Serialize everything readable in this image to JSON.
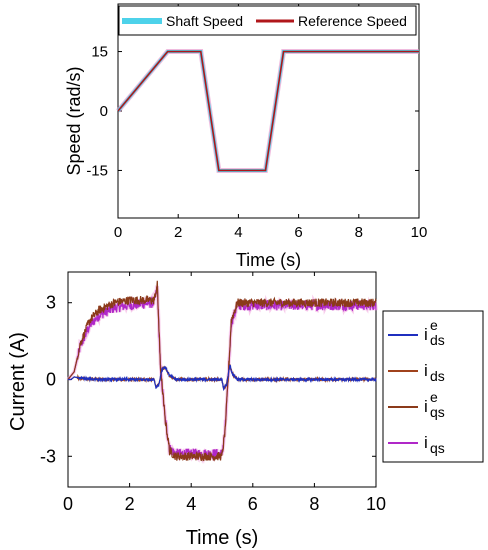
{
  "chart_data": [
    {
      "type": "line",
      "xlabel": "Time (s)",
      "ylabel": "Speed (rad/s)",
      "xlim": [
        0,
        10
      ],
      "ylim": [
        -27,
        27
      ],
      "xticks": [
        "0",
        "2",
        "4",
        "6",
        "8",
        "10"
      ],
      "yticks": [
        "15",
        "0",
        "-15"
      ],
      "ytick_values": [
        15,
        0,
        -15
      ],
      "grid": false,
      "legend_position": "top",
      "colors": {
        "shaft": "#4dd2ea",
        "reference": "#b0161a"
      },
      "series": [
        {
          "name": "Shaft Speed",
          "x": [
            0,
            1.65,
            2.75,
            3.35,
            4.9,
            5.5,
            10
          ],
          "y": [
            0,
            15,
            15,
            -15,
            -15,
            15,
            15
          ]
        },
        {
          "name": "Reference Speed",
          "x": [
            0,
            1.65,
            2.75,
            3.35,
            4.9,
            5.5,
            10
          ],
          "y": [
            0,
            15,
            15,
            -15,
            -15,
            15,
            15
          ]
        }
      ]
    },
    {
      "type": "line",
      "xlabel": "Time (s)",
      "ylabel": "Current (A)",
      "xlim": [
        0,
        10
      ],
      "ylim": [
        -4.2,
        4.2
      ],
      "xticks": [
        "0",
        "2",
        "4",
        "6",
        "8",
        "10"
      ],
      "yticks": [
        "3",
        "0",
        "-3"
      ],
      "ytick_values": [
        3,
        0,
        -3
      ],
      "grid": false,
      "legend_position": "right",
      "colors": {
        "ids_e": "#1f2fbf",
        "ids": "#a0421c",
        "iqs_e": "#8b3a1a",
        "iqs": "#b028c8"
      },
      "series": [
        {
          "name_base": "i",
          "name_sub": "ds",
          "name_sup": "e",
          "x": [
            0,
            0.1,
            0.2,
            0.4,
            1.0,
            2.8,
            2.85,
            2.95,
            3.05,
            3.15,
            3.3,
            3.5,
            5.0,
            5.05,
            5.15,
            5.25,
            5.35,
            5.5,
            10
          ],
          "y": [
            0,
            0,
            0.1,
            0.05,
            0.0,
            0.0,
            -0.3,
            -0.2,
            0.4,
            0.5,
            0.15,
            0.0,
            0.0,
            -0.35,
            -0.2,
            0.55,
            0.2,
            0.0,
            0.0
          ]
        },
        {
          "name_base": "i",
          "name_sub": "ds",
          "name_sup": "",
          "x": [
            0,
            0.1,
            0.2,
            0.4,
            1.0,
            2.8,
            2.85,
            2.95,
            3.05,
            3.15,
            3.3,
            3.5,
            5.0,
            5.05,
            5.15,
            5.25,
            5.35,
            5.5,
            10
          ],
          "y": [
            0,
            0,
            0.1,
            0.05,
            0.0,
            0.0,
            -0.3,
            -0.2,
            0.4,
            0.5,
            0.15,
            0.0,
            0.0,
            -0.35,
            -0.2,
            0.55,
            0.2,
            0.0,
            0.0
          ]
        },
        {
          "name_base": "i",
          "name_sub": "qs",
          "name_sup": "e",
          "x": [
            0,
            0.2,
            0.4,
            0.7,
            1.0,
            1.5,
            2.0,
            2.8,
            2.9,
            3.0,
            3.15,
            3.3,
            3.5,
            5.0,
            5.1,
            5.2,
            5.3,
            5.5,
            6.0,
            10
          ],
          "y": [
            0,
            0.3,
            1.4,
            2.3,
            2.7,
            3.0,
            3.1,
            3.1,
            3.7,
            0.5,
            -1.5,
            -2.8,
            -3.0,
            -3.0,
            -2.0,
            0.0,
            2.3,
            3.0,
            3.0,
            3.0
          ]
        },
        {
          "name_base": "i",
          "name_sub": "qs",
          "name_sup": "",
          "x": [
            0,
            0.2,
            0.4,
            0.7,
            1.0,
            1.5,
            2.0,
            2.8,
            2.9,
            3.0,
            3.15,
            3.3,
            3.5,
            5.0,
            5.1,
            5.2,
            5.3,
            5.5,
            6.0,
            10
          ],
          "y": [
            0,
            0.3,
            1.3,
            2.1,
            2.5,
            2.8,
            2.9,
            3.0,
            3.6,
            0.5,
            -1.5,
            -2.7,
            -2.9,
            -2.9,
            -2.0,
            0.0,
            2.2,
            2.9,
            2.9,
            2.9
          ]
        }
      ]
    }
  ]
}
